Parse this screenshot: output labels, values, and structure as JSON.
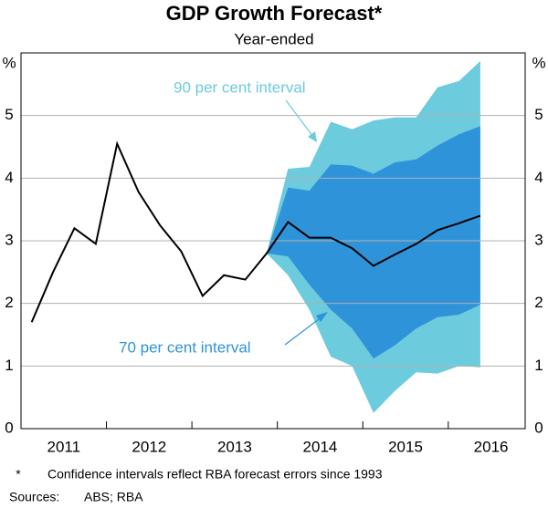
{
  "chart_data": {
    "type": "line",
    "title": "GDP Growth Forecast*",
    "subtitle": "Year-ended",
    "y_unit": "%",
    "xlim": [
      2011,
      2016.9
    ],
    "xticks": [
      {
        "value": 2011.5,
        "label": "2011"
      },
      {
        "value": 2012.5,
        "label": "2012"
      },
      {
        "value": 2013.5,
        "label": "2013"
      },
      {
        "value": 2014.5,
        "label": "2014"
      },
      {
        "value": 2015.5,
        "label": "2015"
      },
      {
        "value": 2016.5,
        "label": "2016"
      }
    ],
    "ylim": [
      0,
      6
    ],
    "yticks": [
      0,
      1,
      2,
      3,
      4,
      5
    ],
    "grid": true,
    "x": [
      2011.125,
      2011.375,
      2011.625,
      2011.875,
      2012.125,
      2012.375,
      2012.625,
      2012.875,
      2013.125,
      2013.375,
      2013.625,
      2013.875,
      2014.125,
      2014.375,
      2014.625,
      2014.875,
      2015.125,
      2015.375,
      2015.625,
      2015.875,
      2016.125,
      2016.375
    ],
    "series": [
      {
        "color": "#000000",
        "values": [
          1.7,
          2.5,
          3.2,
          2.95,
          4.55,
          3.78,
          3.25,
          2.83,
          2.12,
          2.45,
          2.38,
          2.8,
          3.3,
          3.05,
          3.05,
          2.88,
          2.6,
          2.78,
          2.95,
          3.17,
          3.28,
          3.4
        ]
      }
    ],
    "bands": [
      {
        "name": "90 per cent interval",
        "color": "#6ccbdc",
        "x": [
          2013.875,
          2014.125,
          2014.375,
          2014.625,
          2014.875,
          2015.125,
          2015.375,
          2015.625,
          2015.875,
          2016.125,
          2016.375
        ],
        "upper": [
          2.8,
          4.15,
          4.18,
          4.9,
          4.78,
          4.92,
          4.97,
          4.97,
          5.45,
          5.55,
          5.87
        ],
        "lower": [
          2.8,
          2.45,
          1.9,
          1.15,
          1.0,
          0.25,
          0.6,
          0.9,
          0.88,
          1.0,
          0.98
        ]
      },
      {
        "name": "70 per cent interval",
        "color": "#2f93d9",
        "x": [
          2013.875,
          2014.125,
          2014.375,
          2014.625,
          2014.875,
          2015.125,
          2015.375,
          2015.625,
          2015.875,
          2016.125,
          2016.375
        ],
        "upper": [
          2.8,
          3.85,
          3.8,
          4.22,
          4.2,
          4.07,
          4.25,
          4.3,
          4.52,
          4.7,
          4.83
        ],
        "lower": [
          2.8,
          2.75,
          2.3,
          1.9,
          1.6,
          1.12,
          1.33,
          1.6,
          1.78,
          1.82,
          1.98
        ]
      }
    ],
    "footnote": {
      "marker": "*",
      "text": "Confidence intervals reflect RBA forecast errors since 1993"
    },
    "sources": {
      "label": "Sources:",
      "text": "ABS; RBA"
    }
  }
}
